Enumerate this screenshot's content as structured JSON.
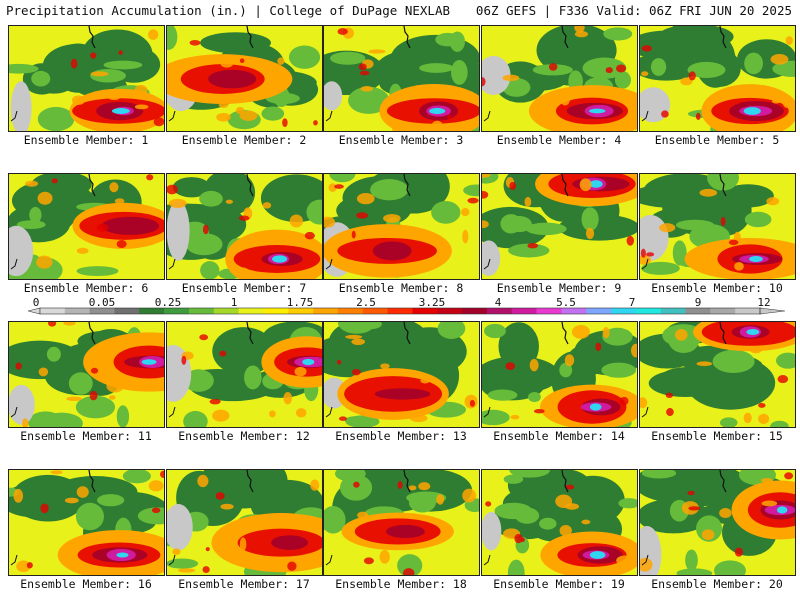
{
  "header": {
    "title_left": "Precipitation Accumulation (in.) | College of DuPage NEXLAB",
    "title_right": "06Z GEFS | F336 Valid: 06Z FRI JUN 20 2025"
  },
  "member_label_prefix": "Ensemble Member: ",
  "members": [
    {
      "number": "1",
      "label": "Ensemble Member: 1",
      "dominant": "wet-south",
      "seed": 11
    },
    {
      "number": "2",
      "label": "Ensemble Member: 2",
      "dominant": "moderate",
      "seed": 23
    },
    {
      "number": "3",
      "label": "Ensemble Member: 3",
      "dominant": "wet-south",
      "seed": 37
    },
    {
      "number": "4",
      "label": "Ensemble Member: 4",
      "dominant": "wet-south",
      "seed": 41
    },
    {
      "number": "5",
      "label": "Ensemble Member: 5",
      "dominant": "dry-west",
      "seed": 53
    },
    {
      "number": "6",
      "label": "Ensemble Member: 6",
      "dominant": "moderate",
      "seed": 67
    },
    {
      "number": "7",
      "label": "Ensemble Member: 7",
      "dominant": "wet-south",
      "seed": 71
    },
    {
      "number": "8",
      "label": "Ensemble Member: 8",
      "dominant": "moderate",
      "seed": 83
    },
    {
      "number": "9",
      "label": "Ensemble Member: 9",
      "dominant": "wet-north",
      "seed": 97
    },
    {
      "number": "10",
      "label": "Ensemble Member: 10",
      "dominant": "wet-south",
      "seed": 101
    },
    {
      "number": "11",
      "label": "Ensemble Member: 11",
      "dominant": "wet-east",
      "seed": 113
    },
    {
      "number": "12",
      "label": "Ensemble Member: 12",
      "dominant": "wet-east",
      "seed": 127
    },
    {
      "number": "13",
      "label": "Ensemble Member: 13",
      "dominant": "moderate",
      "seed": 131
    },
    {
      "number": "14",
      "label": "Ensemble Member: 14",
      "dominant": "wet-south",
      "seed": 149
    },
    {
      "number": "15",
      "label": "Ensemble Member: 15",
      "dominant": "wet-north",
      "seed": 151
    },
    {
      "number": "16",
      "label": "Ensemble Member: 16",
      "dominant": "wet-south",
      "seed": 163
    },
    {
      "number": "17",
      "label": "Ensemble Member: 17",
      "dominant": "moderate",
      "seed": 173
    },
    {
      "number": "18",
      "label": "Ensemble Member: 18",
      "dominant": "moderate",
      "seed": 181
    },
    {
      "number": "19",
      "label": "Ensemble Member: 19",
      "dominant": "dry-west",
      "seed": 191
    },
    {
      "number": "20",
      "label": "Ensemble Member: 20",
      "dominant": "wet-east",
      "seed": 199
    }
  ],
  "colorbar": {
    "unit": "in.",
    "labels": [
      "0",
      "0.05",
      "0.25",
      "1",
      "1.75",
      "2.5",
      "3.25",
      "4",
      "5.5",
      "7",
      "9",
      "12"
    ],
    "colors": [
      "#d9d9d9",
      "#b5b5b5",
      "#8f8f8f",
      "#6f6f6f",
      "#2e7d32",
      "#3e9b3e",
      "#66bb3a",
      "#a6d82a",
      "#e8f21a",
      "#ffee00",
      "#ffcc00",
      "#ffa500",
      "#ff7f00",
      "#ff5a00",
      "#ff2a00",
      "#e60000",
      "#c40014",
      "#a3002a",
      "#b0106a",
      "#d01ba0",
      "#e83ad0",
      "#c070f0",
      "#7fa6ff",
      "#30d6f0",
      "#20e8e0",
      "#40c0c0",
      "#909090",
      "#a8a8a8",
      "#c8c8c8"
    ]
  },
  "palette": {
    "dry": "#c8c8c8",
    "lightgreen": "#66bb3a",
    "green": "#2e7d32",
    "yellow": "#e8f21a",
    "orange": "#ffa500",
    "red": "#e60000",
    "darkred": "#a3002a",
    "magenta": "#d01ba0",
    "cyan": "#30d6f0"
  }
}
